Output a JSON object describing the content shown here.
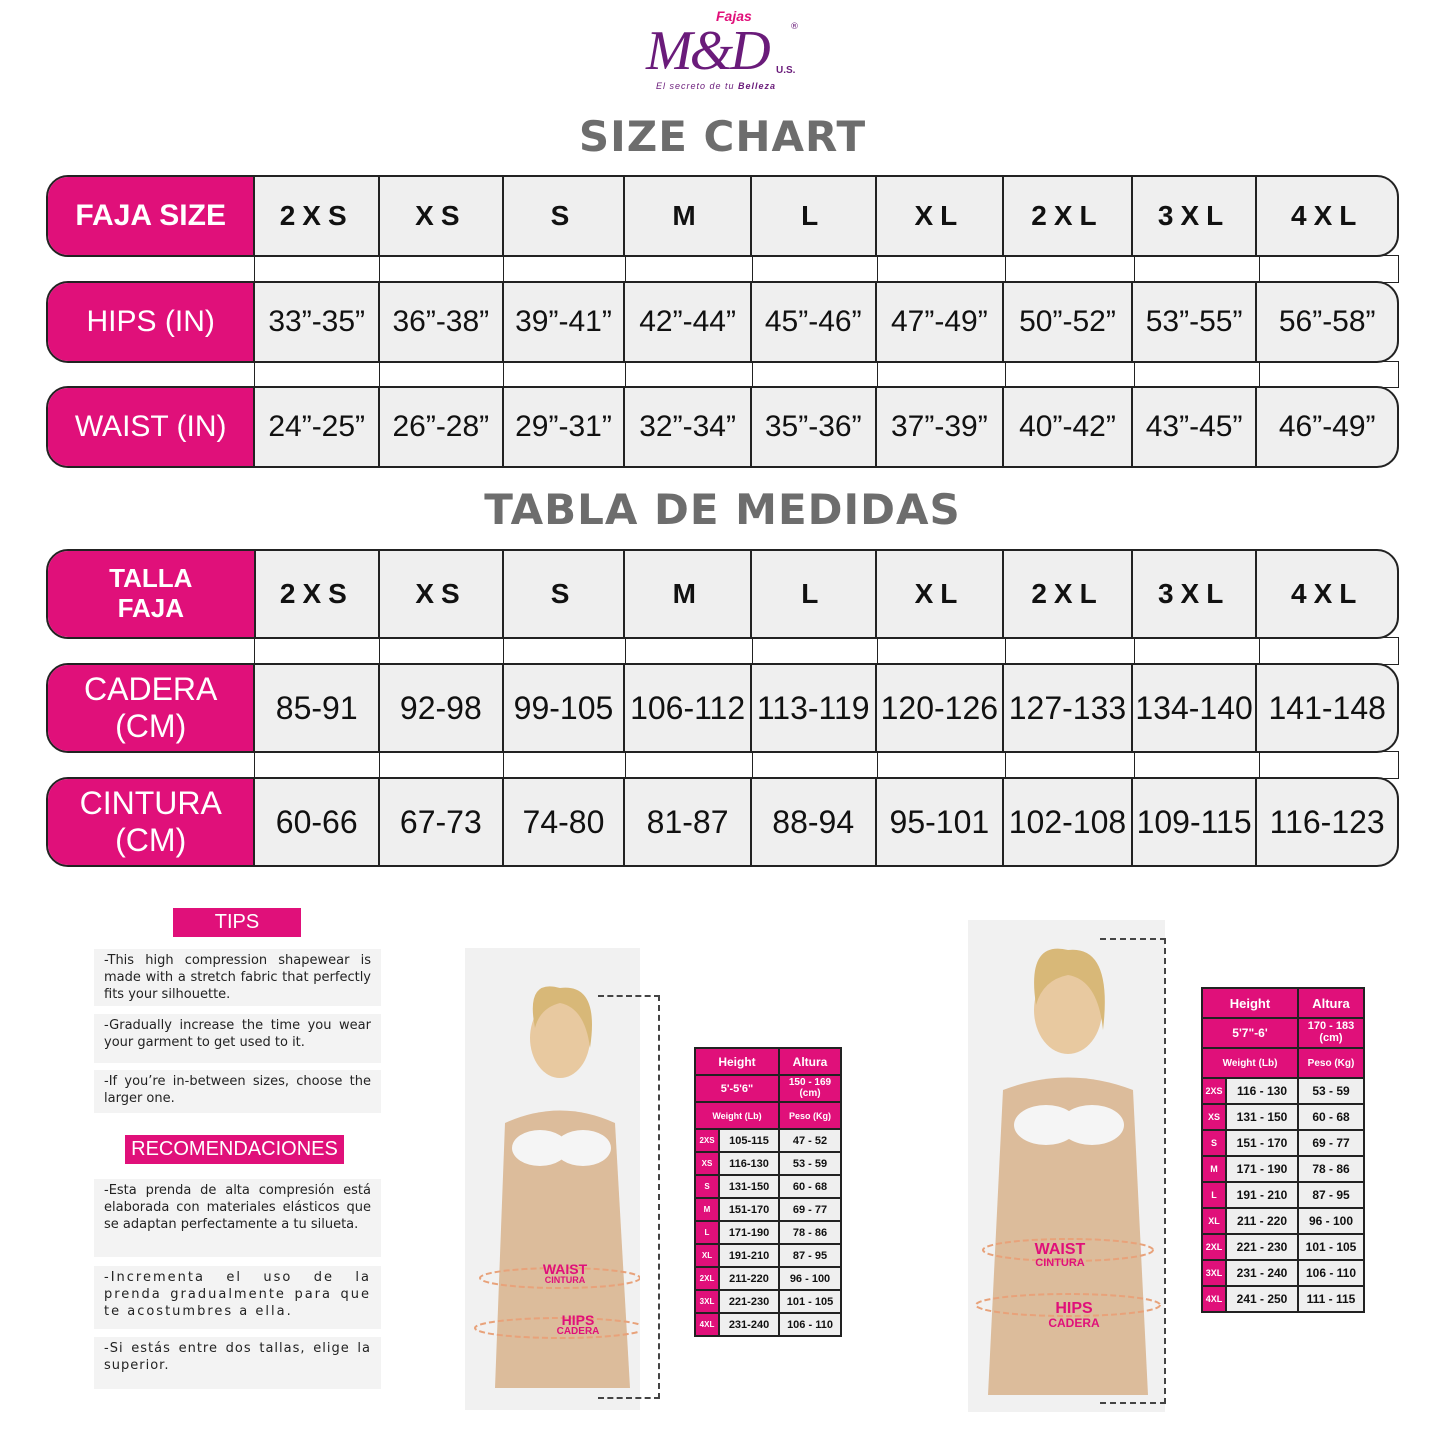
{
  "brand": {
    "name": "Fajas M&D U.S.",
    "fajas": "Fajas",
    "md": "M&D",
    "registered": "®",
    "us": "U.S.",
    "tagline_prefix": "El secreto de tu ",
    "tagline_emph": "Belleza",
    "colors": {
      "primary": "#6a1b7a",
      "accent": "#e0107a"
    }
  },
  "size_chart": {
    "title": "SIZE CHART",
    "rows": [
      {
        "label": "FAJA SIZE",
        "values": [
          "2XS",
          "XS",
          "S",
          "M",
          "L",
          "XL",
          "2XL",
          "3XL",
          "4XL"
        ]
      },
      {
        "label": "HIPS (IN)",
        "values": [
          "33”-35”",
          "36”-38”",
          "39”-41”",
          "42”-44”",
          "45”-46”",
          "47”-49”",
          "50”-52”",
          "53”-55”",
          "56”-58”"
        ]
      },
      {
        "label": "WAIST (IN)",
        "values": [
          "24”-25”",
          "26”-28”",
          "29”-31”",
          "32”-34”",
          "35”-36”",
          "37”-39”",
          "40”-42”",
          "43”-45”",
          "46”-49”"
        ]
      }
    ]
  },
  "tabla_medidas": {
    "title": "TABLA DE MEDIDAS",
    "rows": [
      {
        "label": "TALLA FAJA",
        "values": [
          "2XS",
          "XS",
          "S",
          "M",
          "L",
          "XL",
          "2XL",
          "3XL",
          "4XL"
        ]
      },
      {
        "label": "CADERA (CM)",
        "values": [
          "85-91",
          "92-98",
          "99-105",
          "106-112",
          "113-119",
          "120-126",
          "127-133",
          "134-140",
          "141-148"
        ]
      },
      {
        "label": "CINTURA (CM)",
        "values": [
          "60-66",
          "67-73",
          "74-80",
          "81-87",
          "88-94",
          "95-101",
          "102-108",
          "109-115",
          "116-123"
        ]
      }
    ]
  },
  "tips": {
    "title": "TIPS",
    "items": [
      "-This high compression shapewear is made with a stretch fabric that perfectly fits your silhouette.",
      "-Gradually increase the time you wear your garment to get used to it.",
      "-If you’re in-between sizes, choose the larger one."
    ]
  },
  "recomendaciones": {
    "title": "RECOMENDACIONES",
    "items": [
      "-Esta prenda de alta compresión está elaborada con materiales elásticos que se adaptan perfectamente a tu silueta.",
      "-Incrementa el uso de la prenda gradualmente para que te acostumbres a ella.",
      "-Si estás entre dos tallas, elige la superior."
    ]
  },
  "photo_labels": {
    "waist": "WAIST",
    "cintura": "CINTURA",
    "hips": "HIPS",
    "cadera": "CADERA"
  },
  "weight_tables": [
    {
      "height_label": "Height",
      "altura_label": "Altura",
      "height": "5'-5'6\"",
      "altura": "150 - 169 (cm)",
      "weight_label": "Weight (Lb)",
      "peso_label": "Peso (Kg)",
      "rows": [
        [
          "2XS",
          "105-115",
          "47 - 52"
        ],
        [
          "XS",
          "116-130",
          "53 - 59"
        ],
        [
          "S",
          "131-150",
          "60 - 68"
        ],
        [
          "M",
          "151-170",
          "69 - 77"
        ],
        [
          "L",
          "171-190",
          "78 - 86"
        ],
        [
          "XL",
          "191-210",
          "87 - 95"
        ],
        [
          "2XL",
          "211-220",
          "96 - 100"
        ],
        [
          "3XL",
          "221-230",
          "101 - 105"
        ],
        [
          "4XL",
          "231-240",
          "106 - 110"
        ]
      ]
    },
    {
      "height_label": "Height",
      "altura_label": "Altura",
      "height": "5'7\"-6'",
      "altura": "170 - 183 (cm)",
      "weight_label": "Weight (Lb)",
      "peso_label": "Peso (Kg)",
      "rows": [
        [
          "2XS",
          "116 - 130",
          "53 - 59"
        ],
        [
          "XS",
          "131 - 150",
          "60 - 68"
        ],
        [
          "S",
          "151 - 170",
          "69 - 77"
        ],
        [
          "M",
          "171 - 190",
          "78 - 86"
        ],
        [
          "L",
          "191 - 210",
          "87 - 95"
        ],
        [
          "XL",
          "211 - 220",
          "96 - 100"
        ],
        [
          "2XL",
          "221 - 230",
          "101 - 105"
        ],
        [
          "3XL",
          "231 - 240",
          "106 - 110"
        ],
        [
          "4XL",
          "241 - 250",
          "111 - 115"
        ]
      ]
    }
  ]
}
